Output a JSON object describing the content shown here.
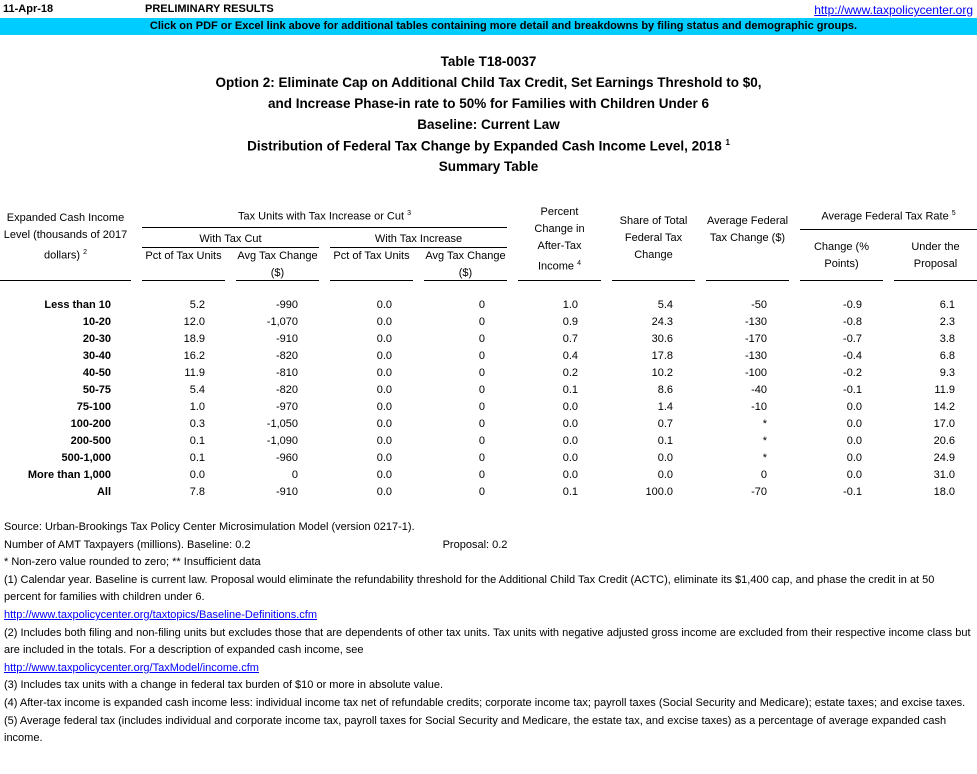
{
  "header": {
    "date": "11-Apr-18",
    "status": "PRELIMINARY RESULTS",
    "link": "http://www.taxpolicycenter.org",
    "banner": "Click on PDF or Excel link above for additional tables containing more detail and breakdowns by filing status and demographic groups."
  },
  "titles": [
    "Table T18-0037",
    "Option 2: Eliminate Cap on Additional Child Tax Credit, Set Earnings Threshold to $0,",
    "and Increase Phase-in rate to 50% for Families with Children Under 6",
    "Baseline: Current Law",
    "Distribution of Federal Tax Change by Expanded Cash Income Level, 2018",
    "Summary Table"
  ],
  "title_footnote": "1",
  "columns": {
    "income_level": "Expanded Cash Income Level (thousands of 2017 dollars)",
    "income_level_fn": "2",
    "group_tax_units": "Tax Units with Tax Increase or Cut",
    "group_tax_units_fn": "3",
    "with_cut": "With Tax Cut",
    "with_increase": "With Tax Increase",
    "pct_units": "Pct of Tax Units",
    "avg_change": "Avg Tax Change ($)",
    "pct_after_tax": "Percent Change in After-Tax Income",
    "pct_after_tax_fn": "4",
    "share_total": "Share of Total Federal Tax Change",
    "avg_fed_change": "Average Federal Tax Change ($)",
    "group_rate": "Average Federal Tax Rate",
    "group_rate_fn": "5",
    "rate_change": "Change (% Points)",
    "rate_under": "Under the Proposal"
  },
  "rows": [
    [
      "Less than 10",
      "5.2",
      "-990",
      "0.0",
      "0",
      "1.0",
      "5.4",
      "-50",
      "-0.9",
      "6.1"
    ],
    [
      "10-20",
      "12.0",
      "-1,070",
      "0.0",
      "0",
      "0.9",
      "24.3",
      "-130",
      "-0.8",
      "2.3"
    ],
    [
      "20-30",
      "18.9",
      "-910",
      "0.0",
      "0",
      "0.7",
      "30.6",
      "-170",
      "-0.7",
      "3.8"
    ],
    [
      "30-40",
      "16.2",
      "-820",
      "0.0",
      "0",
      "0.4",
      "17.8",
      "-130",
      "-0.4",
      "6.8"
    ],
    [
      "40-50",
      "11.9",
      "-810",
      "0.0",
      "0",
      "0.2",
      "10.2",
      "-100",
      "-0.2",
      "9.3"
    ],
    [
      "50-75",
      "5.4",
      "-820",
      "0.0",
      "0",
      "0.1",
      "8.6",
      "-40",
      "-0.1",
      "11.9"
    ],
    [
      "75-100",
      "1.0",
      "-970",
      "0.0",
      "0",
      "0.0",
      "1.4",
      "-10",
      "0.0",
      "14.2"
    ],
    [
      "100-200",
      "0.3",
      "-1,050",
      "0.0",
      "0",
      "0.0",
      "0.7",
      "*",
      "0.0",
      "17.0"
    ],
    [
      "200-500",
      "0.1",
      "-1,090",
      "0.0",
      "0",
      "0.0",
      "0.1",
      "*",
      "0.0",
      "20.6"
    ],
    [
      "500-1,000",
      "0.1",
      "-960",
      "0.0",
      "0",
      "0.0",
      "0.0",
      "*",
      "0.0",
      "24.9"
    ],
    [
      "More than 1,000",
      "0.0",
      "0",
      "0.0",
      "0",
      "0.0",
      "0.0",
      "0",
      "0.0",
      "31.0"
    ],
    [
      "All",
      "7.8",
      "-910",
      "0.0",
      "0",
      "0.1",
      "100.0",
      "-70",
      "-0.1",
      "18.0"
    ]
  ],
  "footnotes": {
    "source": "Source: Urban-Brookings Tax Policy Center Microsimulation Model (version 0217-1).",
    "amt_label": "Number of AMT Taxpayers (millions).  Baseline: 0.2",
    "amt_proposal": "Proposal: 0.2",
    "nonzero": "* Non-zero value rounded to zero; ** Insufficient data",
    "n1": "(1) Calendar year. Baseline is current law. Proposal would eliminate the refundability threshold for the Additional Child Tax Credit (ACTC),  eliminate its $1,400 cap, and phase the credit in at 50 percent for families with children under 6.",
    "n1_link": "http://www.taxpolicycenter.org/taxtopics/Baseline-Definitions.cfm",
    "n2": "(2) Includes both filing and non-filing units but excludes those that are dependents of other tax units. Tax units with negative adjusted gross income are excluded from their respective income class but are included in the totals. For a description of expanded cash income, see",
    "n2_link": "http://www.taxpolicycenter.org/TaxModel/income.cfm",
    "n3": "(3) Includes tax units with a change in federal tax burden of $10 or more in absolute value.",
    "n4": "(4) After-tax income is expanded cash income less: individual income tax net of refundable credits; corporate income tax; payroll taxes (Social Security and Medicare); estate taxes; and excise taxes.",
    "n5": "(5) Average federal tax (includes individual and corporate income tax, payroll taxes for Social Security and Medicare, the estate tax, and excise taxes) as a percentage of average expanded cash income."
  }
}
